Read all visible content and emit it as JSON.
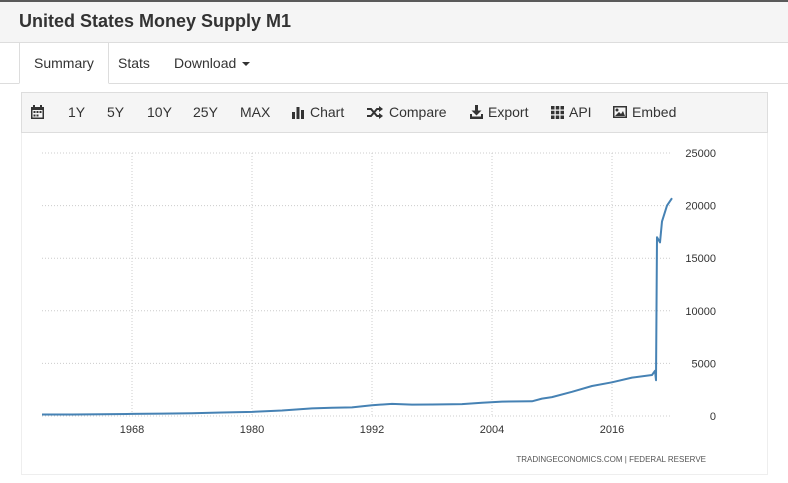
{
  "header": {
    "title": "United States Money Supply M1"
  },
  "tabs": [
    {
      "label": "Summary",
      "active": true
    },
    {
      "label": "Stats"
    },
    {
      "label": "Download",
      "dropdown": true
    }
  ],
  "toolbar": {
    "calendar_icon": "calendar-icon",
    "ranges": [
      "1Y",
      "5Y",
      "10Y",
      "25Y",
      "MAX"
    ],
    "chart_label": "Chart",
    "compare_label": "Compare",
    "export_label": "Export",
    "api_label": "API",
    "embed_label": "Embed"
  },
  "chart_data": {
    "type": "line",
    "title": "",
    "xlabel": "",
    "ylabel": "",
    "xlim": [
      1959,
      2022
    ],
    "ylim": [
      0,
      25000
    ],
    "x_ticks": [
      "1968",
      "1980",
      "1992",
      "2004",
      "2016"
    ],
    "y_ticks": [
      "25000",
      "20000",
      "15000",
      "10000",
      "5000",
      "0"
    ],
    "grid": true,
    "y_axis_side": "right",
    "line_color": "#4682b4",
    "source": "TRADINGECONOMICS.COM  |  FEDERAL RESERVE",
    "series": [
      {
        "x": [
          1959.0,
          1962.0,
          1965.0,
          1968.0,
          1971.0,
          1974.0,
          1977.0,
          1980.0,
          1983.0,
          1986.0,
          1988.0,
          1990.0,
          1992.0,
          1994.0,
          1996.0,
          1998.0,
          2001.0,
          2003.0,
          2005.0,
          2008.0,
          2009.0,
          2010.0,
          2012.0,
          2014.0,
          2016.0,
          2018.0,
          2020.0,
          2020.3,
          2020.4,
          2020.5,
          2020.8,
          2021.0,
          2021.5,
          2022.0
        ],
        "y": [
          140,
          145,
          165,
          195,
          225,
          270,
          330,
          390,
          520,
          720,
          790,
          820,
          1030,
          1150,
          1080,
          1090,
          1130,
          1260,
          1370,
          1400,
          1650,
          1800,
          2300,
          2850,
          3200,
          3650,
          3900,
          4300,
          3400,
          17000,
          16500,
          18500,
          20000,
          20700
        ]
      }
    ]
  }
}
